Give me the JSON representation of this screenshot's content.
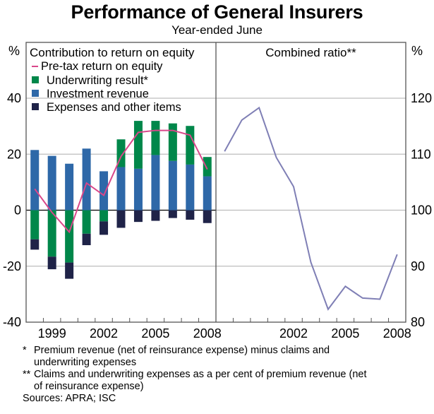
{
  "title": "Performance of General Insurers",
  "subtitle": "Year-ended June",
  "footnotes": [
    {
      "mark": "*",
      "text": "Premium revenue (net of reinsurance expense) minus claims and",
      "text2": "underwriting expenses"
    },
    {
      "mark": "**",
      "text": "Claims and underwriting expenses as a per cent of premium revenue (net",
      "text2": "of reinsurance expense)"
    }
  ],
  "sources": "Sources: APRA; ISC",
  "colors": {
    "underwriting": "#00874A",
    "investment": "#2E68A8",
    "expenses": "#1F2348",
    "pretax": "#D9478A",
    "combined": "#7F7FB5",
    "grid": "#BDBDBD"
  },
  "chart_data": [
    {
      "type": "bar",
      "stacked": true,
      "panel": "left",
      "title": "Contribution to return on equity",
      "ylabel": "%",
      "ylim": [
        -40,
        40
      ],
      "yticks": [
        -40,
        -20,
        0,
        20,
        40
      ],
      "xlim": [
        1998,
        2008
      ],
      "xtick_labels": [
        "1999",
        "2002",
        "2005",
        "2008"
      ],
      "grid": true,
      "legend_position": "top-left",
      "categories": [
        "1998",
        "1999",
        "2000",
        "2001",
        "2002",
        "2003",
        "2004",
        "2005",
        "2006",
        "2007",
        "2008"
      ],
      "series": [
        {
          "name": "Investment revenue",
          "kind": "bar",
          "color_key": "investment",
          "values": [
            21.5,
            19.4,
            16.6,
            22.0,
            13.9,
            15.4,
            14.8,
            19.7,
            17.6,
            16.3,
            12.1
          ]
        },
        {
          "name": "Underwriting result*",
          "kind": "bar",
          "color_key": "underwriting",
          "values": [
            -10.4,
            -16.6,
            -18.7,
            -8.4,
            -4.0,
            9.9,
            17.1,
            12.2,
            13.4,
            13.8,
            6.9
          ]
        },
        {
          "name": "Expenses and other items",
          "kind": "bar",
          "color_key": "expenses",
          "values": [
            -3.7,
            -4.5,
            -5.8,
            -4.1,
            -4.8,
            -6.3,
            -4.2,
            -3.8,
            -2.8,
            -3.4,
            -4.6
          ]
        },
        {
          "name": "Pre-tax return on equity",
          "kind": "line",
          "color_key": "pretax",
          "values": [
            7.6,
            -0.8,
            -7.8,
            9.7,
            5.3,
            19.2,
            27.8,
            28.5,
            28.5,
            26.8,
            14.6
          ]
        }
      ],
      "legend_order": [
        "Pre-tax return on equity",
        "Underwriting result*",
        "Investment revenue",
        "Expenses and other items"
      ]
    },
    {
      "type": "line",
      "panel": "right",
      "title": "Combined ratio**",
      "ylabel": "%",
      "ylim": [
        80,
        120
      ],
      "yticks": [
        80,
        90,
        100,
        110,
        120
      ],
      "xlim": [
        1998,
        2008
      ],
      "xtick_labels": [
        "2002",
        "2005",
        "2008"
      ],
      "grid": true,
      "categories": [
        "1998",
        "1999",
        "2000",
        "2001",
        "2002",
        "2003",
        "2004",
        "2005",
        "2006",
        "2007",
        "2008"
      ],
      "series": [
        {
          "name": "Combined ratio",
          "color_key": "combined",
          "values": [
            110.5,
            116.1,
            118.3,
            109.4,
            104.2,
            90.7,
            82.3,
            86.4,
            84.3,
            84.1,
            92.1
          ]
        }
      ]
    }
  ]
}
